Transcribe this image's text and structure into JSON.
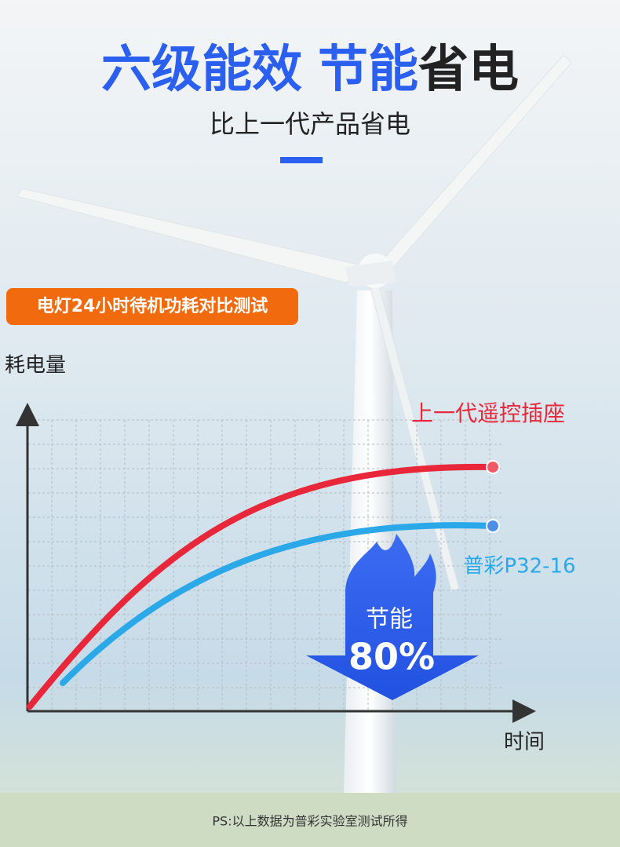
{
  "title": {
    "part1": "六级能效",
    "part2": "节能",
    "part3": "省电"
  },
  "subtitle": "比上一代产品省电",
  "badge": "电灯24小时待机功耗对比测试",
  "diagram": {
    "y_axis_label": "耗电量",
    "x_axis_label": "时间",
    "series": [
      {
        "label": "上一代遥控插座"
      },
      {
        "label": "普彩P32-16"
      }
    ],
    "savings": {
      "label": "节能",
      "value": "80%"
    }
  },
  "footnote": "PS:以上数据为普彩实验室测试所得"
}
